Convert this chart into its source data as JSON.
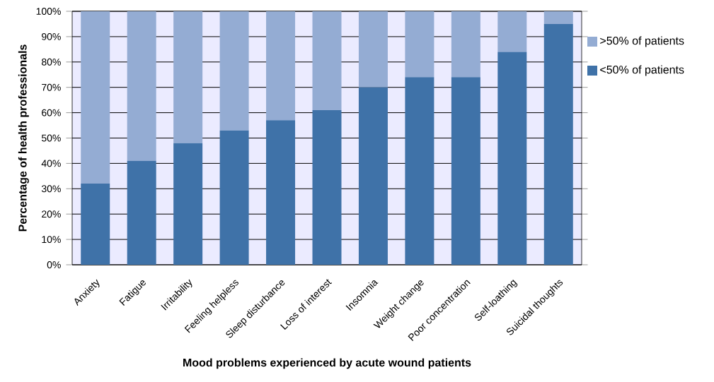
{
  "chart_data": {
    "type": "bar",
    "stacked": true,
    "xlabel": "Mood problems experienced by acute wound patients",
    "ylabel": "Percentage of health professionals",
    "categories": [
      "Anxiety",
      "Fatigue",
      "Irritability",
      "Feeling helpless",
      "Sleep disturbance",
      "Loss of interest",
      "Insomnia",
      "Weight change",
      "Poor concentration",
      "Self-loathing",
      "Suicidal thoughts"
    ],
    "series": [
      {
        "name": "<50% of patients",
        "color": "#3f72a8",
        "values": [
          32,
          41,
          48,
          53,
          57,
          61,
          70,
          74,
          74,
          84,
          95
        ]
      },
      {
        "name": ">50% of patients",
        "color": "#94acd3",
        "values": [
          68,
          59,
          52,
          47,
          43,
          39,
          30,
          26,
          26,
          16,
          5
        ]
      }
    ],
    "ylim": [
      0,
      100
    ],
    "yticks": [
      {
        "value": 0,
        "label": "0%"
      },
      {
        "value": 10,
        "label": "10%"
      },
      {
        "value": 20,
        "label": "20%"
      },
      {
        "value": 30,
        "label": "30%"
      },
      {
        "value": 40,
        "label": "40%"
      },
      {
        "value": 50,
        "label": "50%"
      },
      {
        "value": 60,
        "label": "60%"
      },
      {
        "value": 70,
        "label": "70%"
      },
      {
        "value": 80,
        "label": "80%"
      },
      {
        "value": 90,
        "label": "90%"
      },
      {
        "value": 100,
        "label": "100%"
      }
    ],
    "grid": "y",
    "legend": "right"
  }
}
